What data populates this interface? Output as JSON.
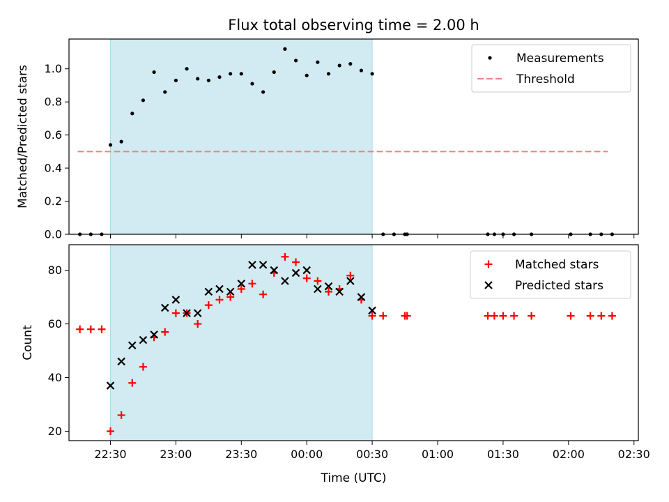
{
  "chart_data": {
    "title": "Flux total observing time = 2.00 h",
    "xlabel": "Time (UTC)",
    "xaxis": {
      "type": "time",
      "start": "2000-01-01T22:11:00",
      "end": "2000-01-02T02:32:00",
      "tick_labels": [
        "22:30",
        "23:00",
        "23:30",
        "00:00",
        "00:30",
        "01:00",
        "01:30",
        "02:00",
        "02:30"
      ],
      "tick_times": [
        "2000-01-01T22:30:00",
        "2000-01-01T23:00:00",
        "2000-01-01T23:30:00",
        "2000-01-02T00:00:00",
        "2000-01-02T00:30:00",
        "2000-01-02T01:00:00",
        "2000-01-02T01:30:00",
        "2000-01-02T02:00:00",
        "2000-01-02T02:30:00"
      ]
    },
    "shaded_interval": [
      "2000-01-01T22:30:00",
      "2000-01-02T00:30:00"
    ],
    "colors": {
      "shade": "#add8e6",
      "threshold": "#f08080",
      "measurements": "#000000",
      "matched": "#ff0000",
      "predicted": "#000000"
    },
    "top_panel": {
      "type": "scatter",
      "ylabel": "Matched/Predicted stars",
      "ylim": [
        0,
        1.18
      ],
      "ytick_labels": [
        "0.0",
        "0.2",
        "0.4",
        "0.6",
        "0.8",
        "1.0"
      ],
      "ytick_values": [
        0,
        0.2,
        0.4,
        0.6,
        0.8,
        1.0
      ],
      "legend_position": "upper right",
      "threshold": {
        "name": "Threshold",
        "value": 0.5,
        "x_start": "2000-01-01T22:15:00",
        "x_end": "2000-01-02T02:18:00",
        "style": "dashed"
      },
      "series": [
        {
          "name": "Measurements",
          "marker": "dot",
          "x": [
            "2000-01-01T22:16:00",
            "2000-01-01T22:21:00",
            "2000-01-01T22:26:00",
            "2000-01-01T22:30:00",
            "2000-01-01T22:35:00",
            "2000-01-01T22:40:00",
            "2000-01-01T22:45:00",
            "2000-01-01T22:50:00",
            "2000-01-01T22:55:00",
            "2000-01-01T23:00:00",
            "2000-01-01T23:05:00",
            "2000-01-01T23:10:00",
            "2000-01-01T23:15:00",
            "2000-01-01T23:20:00",
            "2000-01-01T23:25:00",
            "2000-01-01T23:30:00",
            "2000-01-01T23:35:00",
            "2000-01-01T23:40:00",
            "2000-01-01T23:45:00",
            "2000-01-01T23:50:00",
            "2000-01-01T23:55:00",
            "2000-01-02T00:00:00",
            "2000-01-02T00:05:00",
            "2000-01-02T00:10:00",
            "2000-01-02T00:15:00",
            "2000-01-02T00:20:00",
            "2000-01-02T00:25:00",
            "2000-01-02T00:30:00",
            "2000-01-02T00:35:00",
            "2000-01-02T00:40:00",
            "2000-01-02T00:45:00",
            "2000-01-02T00:46:00",
            "2000-01-02T01:23:00",
            "2000-01-02T01:26:00",
            "2000-01-02T01:30:00",
            "2000-01-02T01:35:00",
            "2000-01-02T01:43:00",
            "2000-01-02T02:01:00",
            "2000-01-02T02:10:00",
            "2000-01-02T02:15:00",
            "2000-01-02T02:20:00"
          ],
          "y": [
            0,
            0,
            0,
            0.54,
            0.56,
            0.73,
            0.81,
            0.98,
            0.86,
            0.93,
            1.0,
            0.94,
            0.93,
            0.95,
            0.97,
            0.97,
            0.91,
            0.86,
            0.98,
            1.12,
            1.05,
            0.96,
            1.04,
            0.97,
            1.02,
            1.03,
            0.99,
            0.97,
            0,
            0,
            0,
            0,
            0,
            0,
            0,
            0,
            0,
            0,
            0,
            0,
            0
          ]
        }
      ]
    },
    "bottom_panel": {
      "type": "scatter",
      "ylabel": "Count",
      "ylim": [
        16.5,
        89.5
      ],
      "ytick_labels": [
        "20",
        "40",
        "60",
        "80"
      ],
      "ytick_values": [
        20,
        40,
        60,
        80
      ],
      "legend_position": "upper right",
      "series": [
        {
          "name": "Matched stars",
          "marker": "plus",
          "x": [
            "2000-01-01T22:16:00",
            "2000-01-01T22:21:00",
            "2000-01-01T22:26:00",
            "2000-01-01T22:30:00",
            "2000-01-01T22:35:00",
            "2000-01-01T22:40:00",
            "2000-01-01T22:45:00",
            "2000-01-01T22:50:00",
            "2000-01-01T22:55:00",
            "2000-01-01T23:00:00",
            "2000-01-01T23:05:00",
            "2000-01-01T23:10:00",
            "2000-01-01T23:15:00",
            "2000-01-01T23:20:00",
            "2000-01-01T23:25:00",
            "2000-01-01T23:30:00",
            "2000-01-01T23:35:00",
            "2000-01-01T23:40:00",
            "2000-01-01T23:45:00",
            "2000-01-01T23:50:00",
            "2000-01-01T23:55:00",
            "2000-01-02T00:00:00",
            "2000-01-02T00:05:00",
            "2000-01-02T00:10:00",
            "2000-01-02T00:15:00",
            "2000-01-02T00:20:00",
            "2000-01-02T00:25:00",
            "2000-01-02T00:30:00",
            "2000-01-02T00:35:00",
            "2000-01-02T00:45:00",
            "2000-01-02T00:46:00",
            "2000-01-02T01:23:00",
            "2000-01-02T01:26:00",
            "2000-01-02T01:30:00",
            "2000-01-02T01:35:00",
            "2000-01-02T01:43:00",
            "2000-01-02T02:01:00",
            "2000-01-02T02:10:00",
            "2000-01-02T02:15:00",
            "2000-01-02T02:20:00"
          ],
          "y": [
            58,
            58,
            58,
            20,
            26,
            38,
            44,
            55,
            57,
            64,
            64,
            60,
            67,
            69,
            70,
            73,
            75,
            71,
            79,
            85,
            83,
            77,
            76,
            72,
            73,
            78,
            69,
            63,
            63,
            63,
            63,
            63,
            63,
            63,
            63,
            63,
            63,
            63,
            63,
            63
          ]
        },
        {
          "name": "Predicted stars",
          "marker": "x",
          "x": [
            "2000-01-01T22:30:00",
            "2000-01-01T22:35:00",
            "2000-01-01T22:40:00",
            "2000-01-01T22:45:00",
            "2000-01-01T22:50:00",
            "2000-01-01T22:55:00",
            "2000-01-01T23:00:00",
            "2000-01-01T23:05:00",
            "2000-01-01T23:10:00",
            "2000-01-01T23:15:00",
            "2000-01-01T23:20:00",
            "2000-01-01T23:25:00",
            "2000-01-01T23:30:00",
            "2000-01-01T23:35:00",
            "2000-01-01T23:40:00",
            "2000-01-01T23:45:00",
            "2000-01-01T23:50:00",
            "2000-01-01T23:55:00",
            "2000-01-02T00:00:00",
            "2000-01-02T00:05:00",
            "2000-01-02T00:10:00",
            "2000-01-02T00:15:00",
            "2000-01-02T00:20:00",
            "2000-01-02T00:25:00",
            "2000-01-02T00:30:00"
          ],
          "y": [
            37,
            46,
            52,
            54,
            56,
            66,
            69,
            64,
            64,
            72,
            73,
            72,
            75,
            82,
            82,
            80,
            76,
            79,
            80,
            73,
            74,
            72,
            76,
            70,
            65
          ]
        }
      ]
    }
  }
}
